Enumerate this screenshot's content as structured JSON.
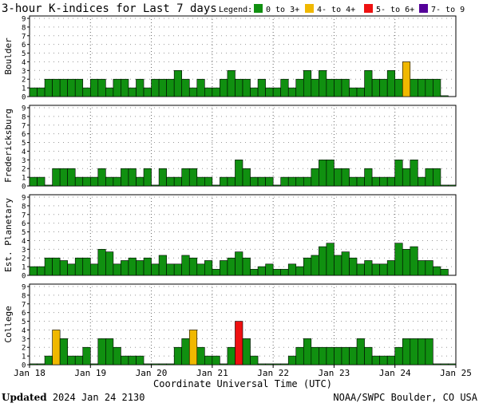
{
  "chart_data": {
    "type": "bar",
    "title": "3-hour K-indices for Last 7 days",
    "legend_title": "Legend:",
    "legend": [
      {
        "label": "0 to 3+",
        "color": "#109010"
      },
      {
        "label": "4- to 4+",
        "color": "#f0b800"
      },
      {
        "label": "5- to 6+",
        "color": "#ee1111"
      },
      {
        "label": "7- to 9",
        "color": "#550099"
      }
    ],
    "xlabel": "Coordinate Universal Time (UTC)",
    "x_tick_labels": [
      "Jan 18",
      "Jan 19",
      "Jan 20",
      "Jan 21",
      "Jan 22",
      "Jan 23",
      "Jan 24",
      "Jan 25"
    ],
    "y_ticks": [
      "0",
      "1",
      "2",
      "3",
      "4",
      "5",
      "6",
      "7",
      "8",
      "9"
    ],
    "ylim": [
      0,
      9
    ],
    "grid": true,
    "panels": [
      {
        "name": "Boulder",
        "values": [
          1,
          1,
          2,
          2,
          2,
          2,
          2,
          1,
          2,
          2,
          1,
          2,
          2,
          1,
          2,
          1,
          2,
          2,
          2,
          3,
          2,
          1,
          2,
          1,
          1,
          2,
          3,
          2,
          2,
          1,
          2,
          1,
          1,
          2,
          1,
          2,
          3,
          2,
          3,
          2,
          2,
          2,
          1,
          1,
          3,
          2,
          2,
          3,
          2,
          4,
          2,
          2,
          2,
          2,
          0.1
        ]
      },
      {
        "name": "Fredericksburg",
        "values": [
          1,
          1,
          0.1,
          2,
          2,
          2,
          1,
          1,
          1,
          2,
          1,
          1,
          2,
          2,
          1,
          2,
          0.1,
          2,
          1,
          1,
          2,
          2,
          1,
          1,
          0.1,
          1,
          1,
          3,
          2,
          1,
          1,
          1,
          0.1,
          1,
          1,
          1,
          1,
          2,
          3,
          3,
          2,
          2,
          1,
          1,
          2,
          1,
          1,
          1,
          3,
          2,
          3,
          1,
          2,
          2,
          0.1,
          0.1
        ]
      },
      {
        "name": "Est. Planetary",
        "values": [
          1,
          1,
          2,
          2,
          1.7,
          1.3,
          2,
          2,
          1.3,
          3,
          2.7,
          1.3,
          1.7,
          2,
          1.7,
          2,
          1.3,
          2.3,
          1.3,
          1.3,
          2.3,
          2,
          1.3,
          1.7,
          0.7,
          1.7,
          2,
          2.7,
          2,
          0.7,
          1,
          1.3,
          0.7,
          0.7,
          1.3,
          1,
          2,
          2.3,
          3.3,
          3.7,
          2.3,
          2.7,
          2,
          1.3,
          1.7,
          1.3,
          1.3,
          1.7,
          3.7,
          3,
          3.3,
          1.7,
          1.7,
          1,
          0.7
        ]
      },
      {
        "name": "College",
        "values": [
          0.1,
          0.1,
          1,
          4,
          3,
          1,
          1,
          2,
          0.1,
          3,
          3,
          2,
          1,
          1,
          1,
          0.1,
          0.1,
          0.1,
          0.1,
          2,
          3,
          4,
          2,
          1,
          1,
          0.1,
          2,
          5,
          3,
          1,
          0.1,
          0.1,
          0.1,
          0.1,
          1,
          2,
          3,
          2,
          2,
          2,
          2,
          2,
          2,
          3,
          2,
          1,
          1,
          1,
          2,
          3,
          3,
          3,
          3,
          0.1,
          0.1,
          0.1
        ]
      }
    ]
  },
  "footer": {
    "updated_label": "Updated",
    "updated_time": "2024 Jan 24 2130",
    "source": "NOAA/SWPC Boulder, CO USA"
  }
}
